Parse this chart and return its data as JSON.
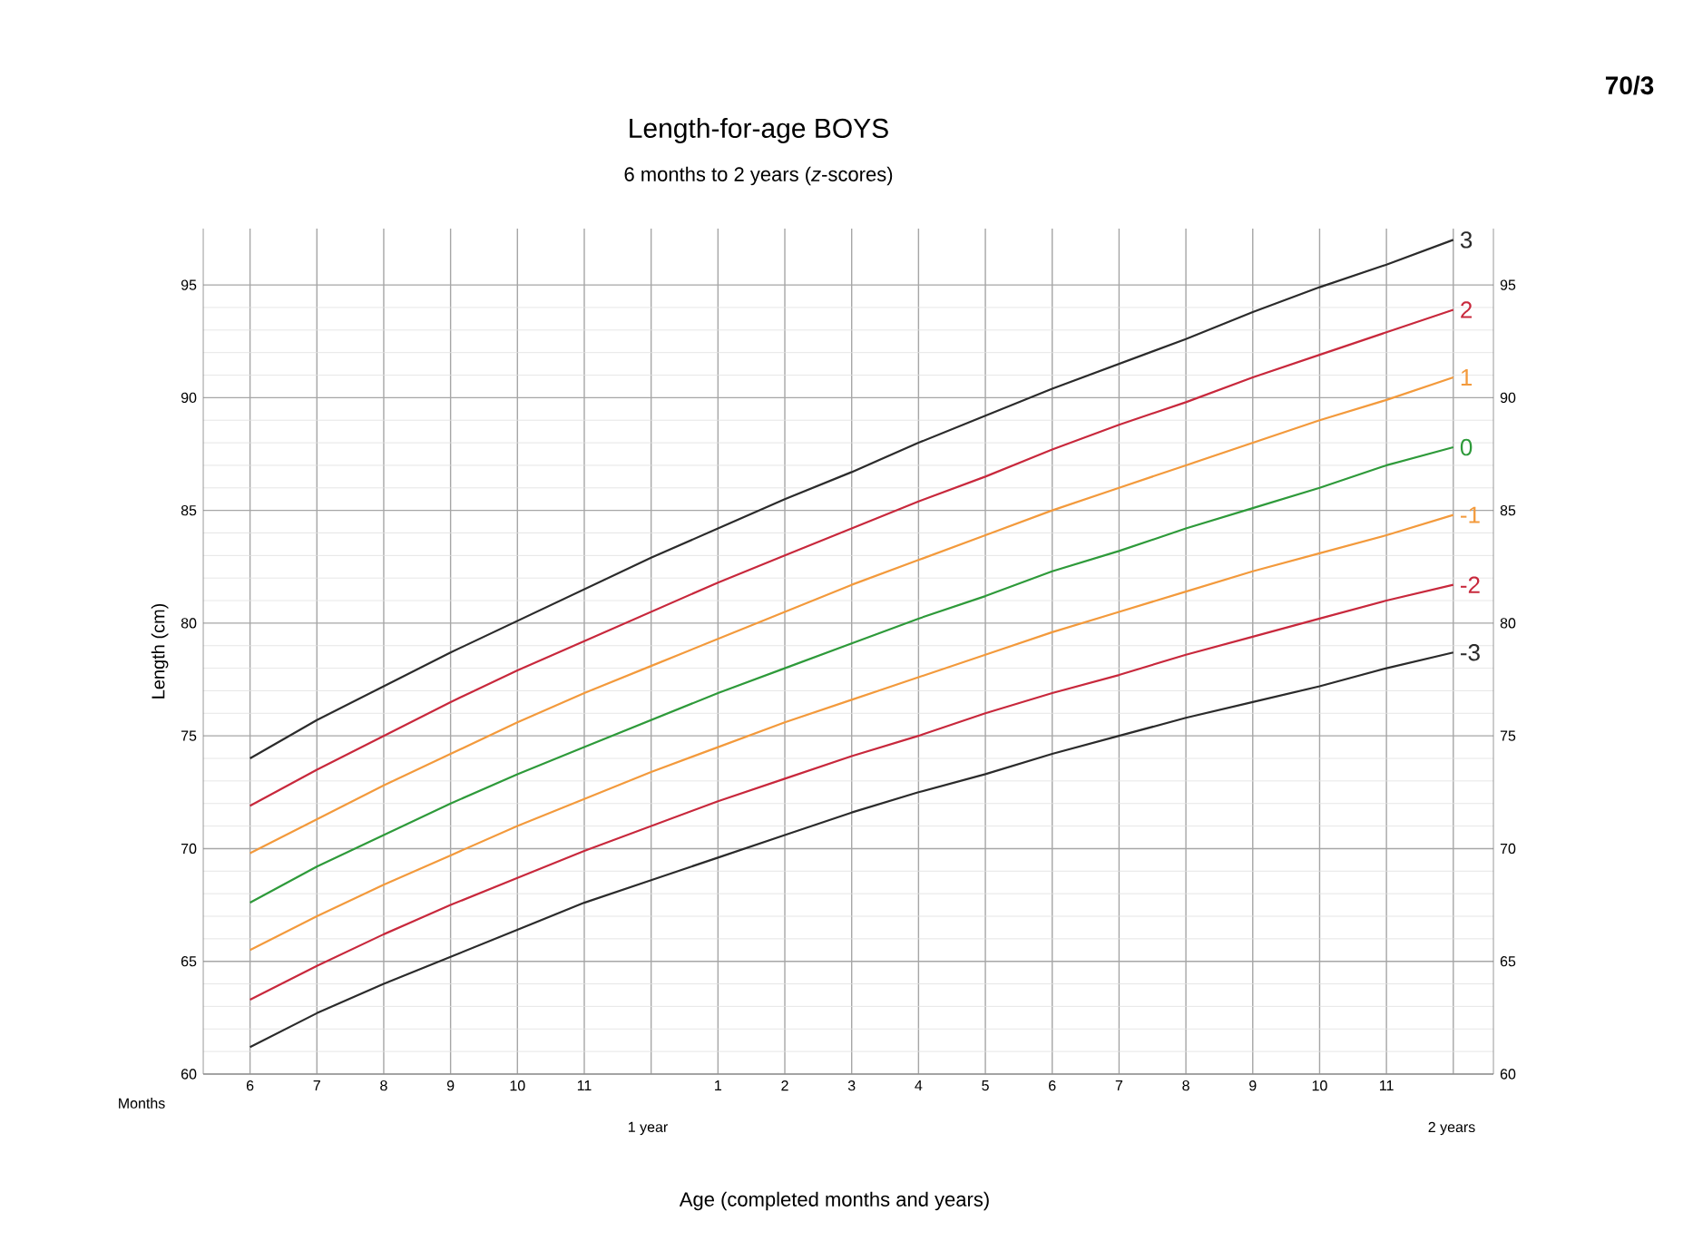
{
  "chart_data": {
    "type": "line",
    "title": "Length-for-age BOYS",
    "subtitle": "6 months to 2 years (*z*-scores)",
    "ylabel": "Length (cm)",
    "annotations": [
      "Months",
      "1 year",
      "2 years",
      "Age (completed months and years)",
      "70/3"
    ],
    "categories": [
      "6",
      "7",
      "8",
      "9",
      "10",
      "11",
      null,
      "1",
      "2",
      "3",
      "4",
      "5",
      "6",
      "7",
      "8",
      "9",
      "10",
      "11",
      null
    ],
    "ylim": [
      60,
      97.5
    ],
    "yticks": [
      60,
      65,
      70,
      75,
      80,
      85,
      90,
      95
    ],
    "y2lim": [
      60,
      97.5
    ],
    "y2ticks": [
      60,
      65,
      70,
      75,
      80,
      85,
      90,
      95
    ],
    "grid": true,
    "marker": "none",
    "line_style": "solid",
    "series": [
      {
        "name": "3",
        "color": "#2b2b2b",
        "values": [
          74.0,
          75.7,
          77.2,
          78.7,
          80.1,
          81.5,
          82.9,
          84.2,
          85.5,
          86.7,
          88.0,
          89.2,
          90.4,
          91.5,
          92.6,
          93.8,
          94.9,
          95.9,
          97.0
        ]
      },
      {
        "name": "2",
        "color": "#c8283c",
        "values": [
          71.9,
          73.5,
          75.0,
          76.5,
          77.9,
          79.2,
          80.5,
          81.8,
          83.0,
          84.2,
          85.4,
          86.5,
          87.7,
          88.8,
          89.8,
          90.9,
          91.9,
          92.9,
          93.9
        ]
      },
      {
        "name": "1",
        "color": "#f39a3c",
        "values": [
          69.8,
          71.3,
          72.8,
          74.2,
          75.6,
          76.9,
          78.1,
          79.3,
          80.5,
          81.7,
          82.8,
          83.9,
          85.0,
          86.0,
          87.0,
          88.0,
          89.0,
          89.9,
          90.9
        ]
      },
      {
        "name": "0",
        "color": "#2e9a3a",
        "values": [
          67.6,
          69.2,
          70.6,
          72.0,
          73.3,
          74.5,
          75.7,
          76.9,
          78.0,
          79.1,
          80.2,
          81.2,
          82.3,
          83.2,
          84.2,
          85.1,
          86.0,
          87.0,
          87.8
        ]
      },
      {
        "name": "-1",
        "color": "#f39a3c",
        "values": [
          65.5,
          67.0,
          68.4,
          69.7,
          71.0,
          72.2,
          73.4,
          74.5,
          75.6,
          76.6,
          77.6,
          78.6,
          79.6,
          80.5,
          81.4,
          82.3,
          83.1,
          83.9,
          84.8
        ]
      },
      {
        "name": "-2",
        "color": "#c8283c",
        "values": [
          63.3,
          64.8,
          66.2,
          67.5,
          68.7,
          69.9,
          71.0,
          72.1,
          73.1,
          74.1,
          75.0,
          76.0,
          76.9,
          77.7,
          78.6,
          79.4,
          80.2,
          81.0,
          81.7
        ]
      },
      {
        "name": "-3",
        "color": "#2b2b2b",
        "values": [
          61.2,
          62.7,
          64.0,
          65.2,
          66.4,
          67.6,
          68.6,
          69.6,
          70.6,
          71.6,
          72.5,
          73.3,
          74.2,
          75.0,
          75.8,
          76.5,
          77.2,
          78.0,
          78.7
        ]
      }
    ]
  }
}
